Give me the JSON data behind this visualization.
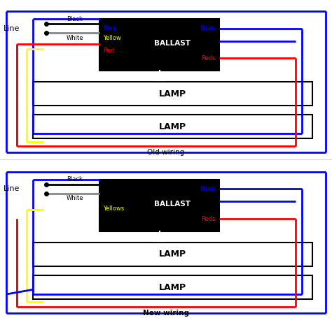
{
  "bg_color": "#ffffff",
  "wire_lw": 2.0,
  "wire_colors": {
    "blue": "#0000FF",
    "red": "#FF0000",
    "yellow": "#FFFF00",
    "white": "#FFFFFF",
    "black": "#000000",
    "gray": "#888888"
  },
  "diagrams": [
    {
      "label": "Old wiring",
      "bold": false,
      "left_labels": [
        [
          "Blue",
          "#0000FF"
        ],
        [
          "Yellow",
          "#FFFF00"
        ],
        [
          "Red",
          "#FF0000"
        ]
      ],
      "right_top_label": [
        "Blues",
        "#0000FF"
      ],
      "right_bot_label": [
        "Reds",
        "#FF0000"
      ],
      "new_blue_diagonal": false
    },
    {
      "label": "New wiring",
      "bold": true,
      "left_labels": [
        [
          "Yellows",
          "#FFFF00"
        ]
      ],
      "right_top_label": [
        "Blues",
        "#0000FF"
      ],
      "right_bot_label": [
        "Reds",
        "#FF0000"
      ],
      "new_blue_diagonal": true
    }
  ]
}
